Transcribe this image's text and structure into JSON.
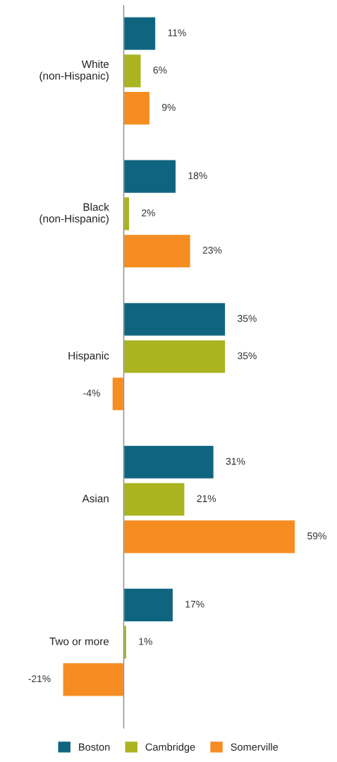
{
  "chart_data": {
    "type": "bar",
    "orientation": "horizontal",
    "categories": [
      "White\n(non-Hispanic)",
      "Black\n(non-Hispanic)",
      "Hispanic",
      "Asian",
      "Two or more"
    ],
    "series": [
      {
        "name": "Boston",
        "color": "#0f6580",
        "values": [
          11,
          18,
          35,
          31,
          17
        ],
        "value_labels": [
          "11%",
          "18%",
          "35%",
          "31%",
          "17%"
        ]
      },
      {
        "name": "Cambridge",
        "color": "#a9b41f",
        "values": [
          6,
          2,
          35,
          21,
          1
        ],
        "value_labels": [
          "6%",
          "2%",
          "35%",
          "21%",
          "1%"
        ]
      },
      {
        "name": "Somerville",
        "color": "#f58d22",
        "values": [
          9,
          23,
          -4,
          59,
          -21
        ],
        "value_labels": [
          "9%",
          "23%",
          "-4%",
          "59%",
          "-21%"
        ]
      }
    ],
    "legend": "bottom"
  }
}
